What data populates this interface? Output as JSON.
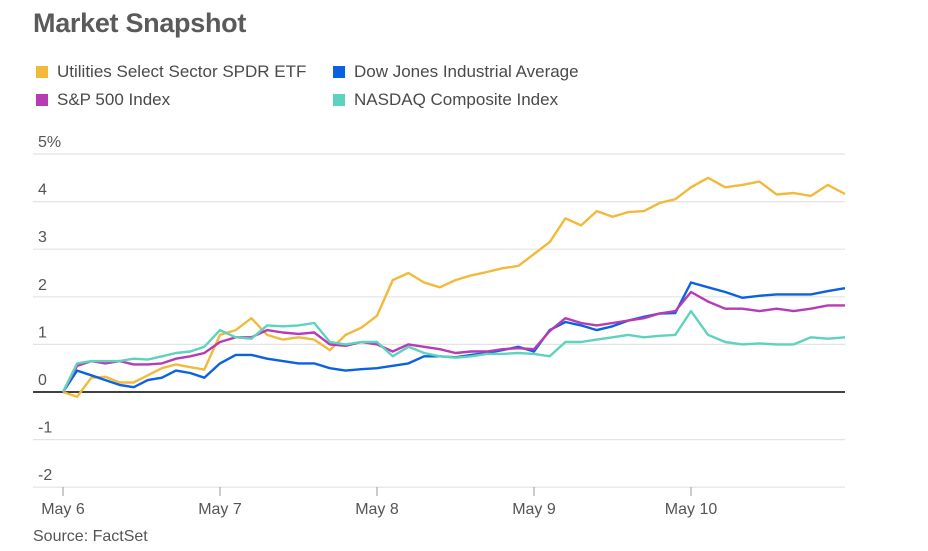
{
  "title": "Market Snapshot",
  "source": "Source: FactSet",
  "chart_data": {
    "type": "line",
    "title": "Market Snapshot",
    "xlabel": "",
    "ylabel": "",
    "y_unit": "%",
    "ylim": [
      -2,
      5
    ],
    "y_ticks": [
      5,
      4,
      3,
      2,
      1,
      0,
      -1,
      -2
    ],
    "y_tick_labels": [
      "5%",
      "4",
      "3",
      "2",
      "1",
      "0",
      "-1",
      "-2"
    ],
    "sessions": [
      "May 6",
      "May 7",
      "May 8",
      "May 9",
      "May 10"
    ],
    "x_note_sampling": "values evenly spaced within each trading session",
    "grid": true,
    "legend_placement": "top-left",
    "series": [
      {
        "name": "Utilities Select Sector SPDR ETF",
        "color": "#f2b93b",
        "values": [
          [
            0.0,
            -0.1,
            0.3,
            0.32,
            0.2,
            0.2,
            0.35,
            0.5,
            0.58,
            0.52,
            0.47
          ],
          [
            1.2,
            1.3,
            1.55,
            1.2,
            1.1,
            1.15,
            1.1,
            0.88,
            1.2,
            1.35
          ],
          [
            1.6,
            2.35,
            2.5,
            2.3,
            2.2,
            2.35,
            2.45,
            2.52,
            2.6,
            2.65
          ],
          [
            2.9,
            3.15,
            3.65,
            3.5,
            3.8,
            3.68,
            3.78,
            3.8,
            3.97,
            4.05
          ],
          [
            4.3,
            4.5,
            4.3,
            4.35,
            4.42,
            4.15,
            4.18,
            4.12,
            4.35,
            4.16
          ]
        ]
      },
      {
        "name": "Dow Jones Industrial Average",
        "color": "#0b62e0",
        "values": [
          [
            0.0,
            0.45,
            0.35,
            0.25,
            0.15,
            0.1,
            0.25,
            0.3,
            0.45,
            0.4,
            0.3
          ],
          [
            0.6,
            0.78,
            0.78,
            0.7,
            0.65,
            0.6,
            0.6,
            0.5,
            0.45,
            0.48
          ],
          [
            0.5,
            0.55,
            0.6,
            0.75,
            0.75,
            0.73,
            0.78,
            0.82,
            0.88,
            0.95
          ],
          [
            0.85,
            1.3,
            1.47,
            1.4,
            1.3,
            1.38,
            1.5,
            1.58,
            1.65,
            1.66
          ],
          [
            2.3,
            2.2,
            2.1,
            1.98,
            2.02,
            2.05,
            2.05,
            2.05,
            2.12,
            2.18
          ]
        ]
      },
      {
        "name": "S&P 500 Index",
        "color": "#b73bb5",
        "values": [
          [
            0.0,
            0.55,
            0.65,
            0.6,
            0.65,
            0.58,
            0.58,
            0.6,
            0.7,
            0.75,
            0.82
          ],
          [
            1.05,
            1.15,
            1.15,
            1.3,
            1.25,
            1.22,
            1.25,
            1.0,
            0.97,
            1.05
          ],
          [
            1.0,
            0.85,
            1.0,
            0.95,
            0.9,
            0.82,
            0.85,
            0.85,
            0.9,
            0.92
          ],
          [
            0.9,
            1.28,
            1.55,
            1.45,
            1.4,
            1.45,
            1.5,
            1.55,
            1.65,
            1.7
          ],
          [
            2.1,
            1.9,
            1.75,
            1.75,
            1.7,
            1.75,
            1.7,
            1.75,
            1.82,
            1.82
          ]
        ]
      },
      {
        "name": "NASDAQ Composite Index",
        "color": "#5dd3be",
        "values": [
          [
            0.0,
            0.6,
            0.65,
            0.65,
            0.65,
            0.7,
            0.68,
            0.75,
            0.82,
            0.85,
            0.95
          ],
          [
            1.3,
            1.15,
            1.12,
            1.4,
            1.38,
            1.4,
            1.45,
            1.05,
            1.0,
            1.05
          ],
          [
            1.05,
            0.75,
            0.95,
            0.82,
            0.75,
            0.72,
            0.75,
            0.8,
            0.8,
            0.82
          ],
          [
            0.8,
            0.75,
            1.05,
            1.05,
            1.1,
            1.15,
            1.2,
            1.15,
            1.18,
            1.2
          ],
          [
            1.7,
            1.2,
            1.05,
            1.0,
            1.02,
            1.0,
            1.0,
            1.15,
            1.12,
            1.15
          ]
        ]
      }
    ]
  }
}
